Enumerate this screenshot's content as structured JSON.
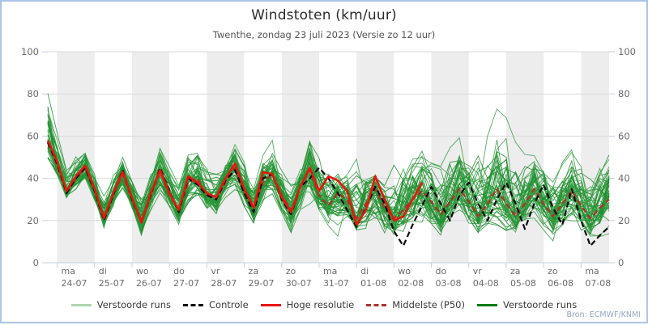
{
  "header": {
    "title": "Windstoten (km/uur)",
    "subtitle": "Twenthe, zondag 23 juli 2023 (Versie zo 12 uur)"
  },
  "footer": {
    "source": "Bron: ECMWF/KNMI"
  },
  "colors": {
    "frame_border": "#aac6e6",
    "day_band": "#ededed",
    "gridline": "#d9d9d9",
    "axis": "#c2cfe0",
    "tick_text": "#6b6b6b"
  },
  "legend": {
    "items": [
      {
        "label": "Verstoorde runs",
        "color": "#afd6af",
        "style": "solid"
      },
      {
        "label": "Controle",
        "color": "#111111",
        "style": "dashed"
      },
      {
        "label": "Hoge resolutie",
        "color": "#e8150c",
        "style": "solid"
      },
      {
        "label": "Middelste (P50)",
        "color": "#a9352b",
        "style": "dashed"
      },
      {
        "label": "Verstoorde runs",
        "color": "#0e7a12",
        "style": "solid"
      }
    ]
  },
  "chart_data": {
    "type": "line",
    "title": "Windstoten (km/uur)",
    "subtitle": "Twenthe, zondag 23 juli 2023 (Versie zo 12 uur)",
    "ylabel": "km/uur",
    "ylim": [
      0,
      100
    ],
    "yticks": [
      0,
      20,
      40,
      60,
      80,
      100
    ],
    "grid": true,
    "legend_position": "bottom-center",
    "points_per_day": 4,
    "x_days": [
      {
        "dow": "ma",
        "date": "24-07"
      },
      {
        "dow": "di",
        "date": "25-07"
      },
      {
        "dow": "wo",
        "date": "26-07"
      },
      {
        "dow": "do",
        "date": "27-07"
      },
      {
        "dow": "vr",
        "date": "28-07"
      },
      {
        "dow": "za",
        "date": "29-07"
      },
      {
        "dow": "zo",
        "date": "30-07"
      },
      {
        "dow": "ma",
        "date": "31-07"
      },
      {
        "dow": "di",
        "date": "01-08"
      },
      {
        "dow": "wo",
        "date": "02-08"
      },
      {
        "dow": "do",
        "date": "03-08"
      },
      {
        "dow": "vr",
        "date": "04-08"
      },
      {
        "dow": "za",
        "date": "05-08"
      },
      {
        "dow": "zo",
        "date": "06-08"
      },
      {
        "dow": "ma",
        "date": "07-08"
      }
    ],
    "series": [
      {
        "key": "hoge-resolutie",
        "name": "Hoge resolutie",
        "color": "#e8150c",
        "style": "solid",
        "width": 2.6,
        "values": [
          58,
          48,
          34,
          41,
          46,
          35,
          21,
          33,
          43,
          31,
          19,
          33,
          44,
          33,
          25,
          41,
          38,
          33,
          31,
          40,
          47,
          35,
          26,
          43,
          42,
          31,
          24,
          36,
          45,
          34,
          41,
          39,
          34,
          18,
          25,
          41,
          30,
          20,
          22,
          30,
          38
        ]
      },
      {
        "key": "controle",
        "name": "Controle",
        "color": "#0b0b0b",
        "style": "dashed",
        "width": 2.2,
        "values": [
          57,
          47,
          33,
          40,
          45,
          34,
          20,
          32,
          44,
          30,
          19,
          32,
          45,
          34,
          24,
          40,
          37,
          32,
          30,
          39,
          44,
          33,
          24,
          40,
          42,
          30,
          23,
          36,
          40,
          45,
          40,
          33,
          25,
          17,
          26,
          36,
          28,
          15,
          8,
          18,
          27,
          36,
          28,
          20,
          32,
          38,
          28,
          20,
          30,
          38,
          28,
          16,
          28,
          37,
          26,
          18,
          35,
          20,
          8,
          13,
          17
        ]
      },
      {
        "key": "middelste-p50",
        "name": "Middelste (P50)",
        "color": "#b03028",
        "style": "dashed",
        "width": 2.2,
        "values": [
          57,
          46,
          34,
          40,
          45,
          34,
          22,
          32,
          42,
          30,
          20,
          32,
          43,
          32,
          25,
          38,
          40,
          32,
          30,
          38,
          45,
          34,
          26,
          38,
          42,
          32,
          25,
          36,
          44,
          32,
          27,
          33,
          30,
          21,
          28,
          35,
          26,
          21,
          25,
          30,
          34,
          29,
          23,
          29,
          35,
          29,
          22,
          28,
          35,
          28,
          22,
          28,
          35,
          28,
          22,
          28,
          34,
          27,
          21,
          26,
          30
        ]
      }
    ],
    "ensemble": {
      "name": "Verstoorde runs",
      "count": 48,
      "color": "#2f9e3c",
      "color2": "#1d8b2d",
      "min": [
        46,
        40,
        30,
        33,
        38,
        28,
        14,
        25,
        33,
        24,
        10,
        22,
        30,
        25,
        16,
        25,
        28,
        22,
        18,
        28,
        30,
        24,
        14,
        25,
        28,
        22,
        10,
        22,
        26,
        22,
        16,
        12,
        20,
        12,
        14,
        12,
        10,
        8,
        10,
        12,
        12,
        12,
        10,
        15,
        18,
        14,
        10,
        15,
        15,
        14,
        12,
        14,
        16,
        14,
        10,
        12,
        14,
        10,
        6,
        8,
        10
      ],
      "max": [
        81,
        62,
        45,
        52,
        56,
        48,
        35,
        45,
        54,
        44,
        35,
        45,
        58,
        48,
        40,
        55,
        58,
        50,
        45,
        55,
        63,
        52,
        42,
        55,
        62,
        52,
        45,
        52,
        65,
        55,
        48,
        45,
        52,
        60,
        52,
        45,
        42,
        52,
        55,
        57,
        58,
        55,
        50,
        58,
        60,
        55,
        60,
        62,
        74,
        70,
        60,
        58,
        60,
        55,
        50,
        55,
        58,
        52,
        48,
        52,
        57
      ]
    }
  }
}
